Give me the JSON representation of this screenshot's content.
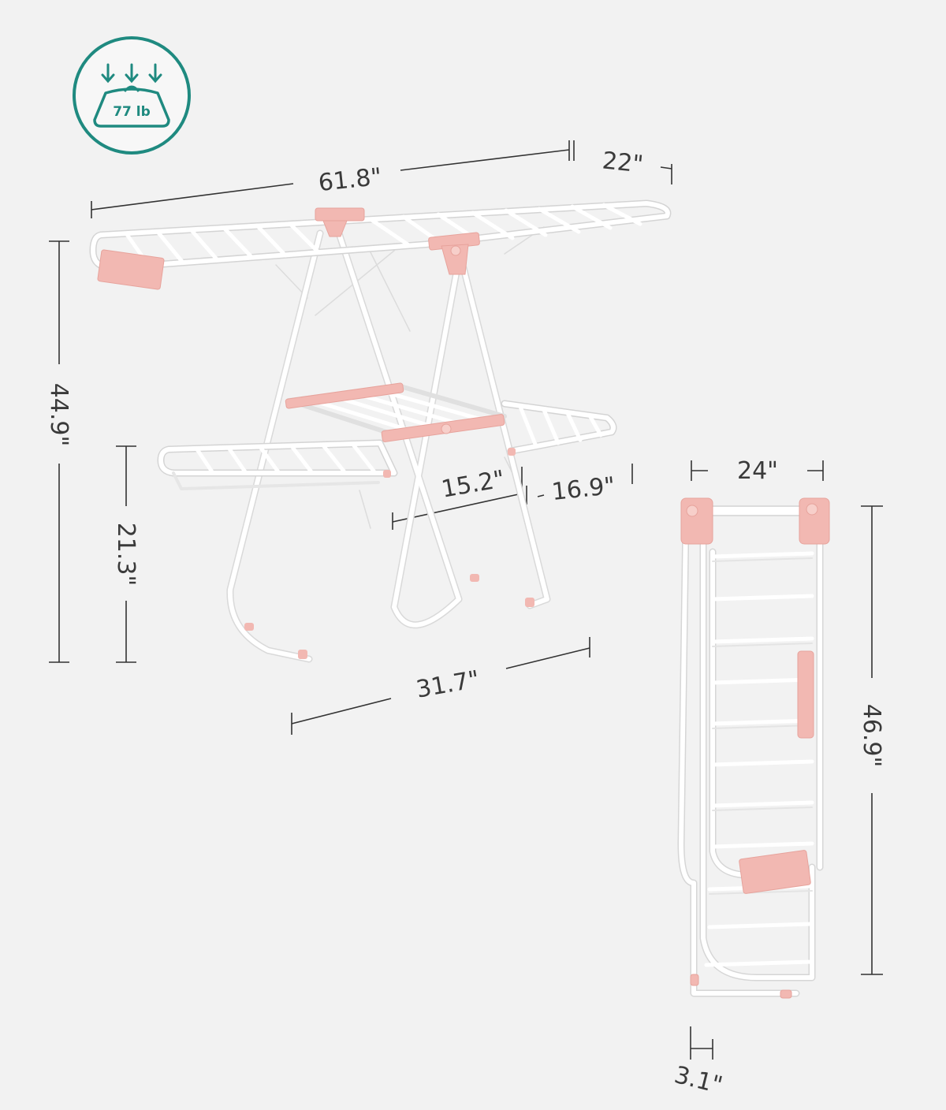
{
  "badge": {
    "weight_label": "77 lb",
    "icon": "weight-capacity-icon",
    "color": "#1f8a80"
  },
  "dimensions": {
    "length": "61.8\"",
    "width": "22\"",
    "height": "44.9\"",
    "lower_height": "21.3\"",
    "wing_depth": "15.2\"",
    "wing_width": "16.9\"",
    "base_width": "31.7\"",
    "folded_width": "24\"",
    "folded_height": "46.9\"",
    "folded_thickness": "3.1\""
  },
  "colors": {
    "background": "#f2f2f2",
    "frame": "#ffffff",
    "accent": "#f2b8b2",
    "dimension_line": "#333333"
  }
}
